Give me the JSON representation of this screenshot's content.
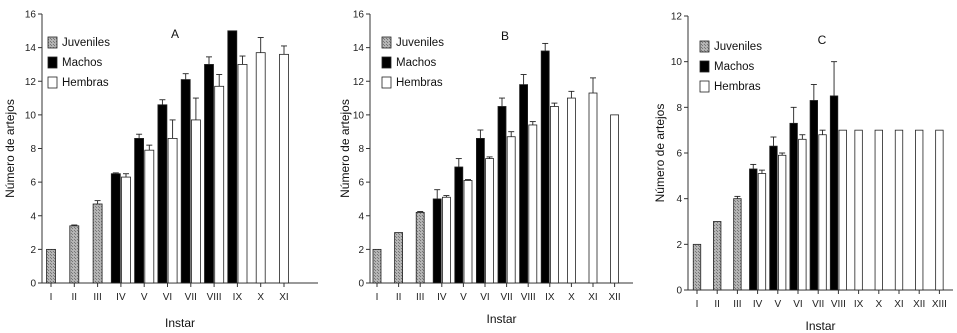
{
  "figure": {
    "legend_labels": [
      "Juveniles",
      "Machos",
      "Hembras"
    ],
    "colors": {
      "juveniles": "#a8a8a8",
      "machos": "#000000",
      "hembras": "#ffffff",
      "outline": "#222222"
    }
  },
  "chart_data": [
    {
      "type": "bar",
      "panel": "A",
      "xlabel": "Instar",
      "ylabel": "Número de artejos",
      "ylim": [
        0,
        16
      ],
      "yticks": [
        0,
        2,
        4,
        6,
        8,
        10,
        12,
        14,
        16
      ],
      "categories": [
        "I",
        "II",
        "III",
        "IV",
        "V",
        "VI",
        "VII",
        "VIII",
        "IX",
        "X",
        "XI"
      ],
      "legend_position": "top-left",
      "series": [
        {
          "name": "Juveniles",
          "values": [
            2.0,
            3.4,
            4.7,
            null,
            null,
            null,
            null,
            null,
            null,
            null,
            null
          ],
          "errors": [
            0,
            0.05,
            0.2,
            null,
            null,
            null,
            null,
            null,
            null,
            null,
            null
          ]
        },
        {
          "name": "Machos",
          "values": [
            null,
            null,
            null,
            6.5,
            8.6,
            10.6,
            12.1,
            13.0,
            15.0,
            null,
            null
          ],
          "errors": [
            null,
            null,
            null,
            0.05,
            0.25,
            0.3,
            0.35,
            0.45,
            0,
            null,
            null
          ]
        },
        {
          "name": "Hembras",
          "values": [
            null,
            null,
            null,
            6.3,
            7.9,
            8.6,
            9.7,
            11.7,
            13.0,
            13.7,
            13.6
          ],
          "errors": [
            null,
            null,
            null,
            0.2,
            0.3,
            1.1,
            1.3,
            0.7,
            0.5,
            0.9,
            0.5
          ]
        }
      ]
    },
    {
      "type": "bar",
      "panel": "B",
      "xlabel": "Instar",
      "ylabel": "Número de artejos",
      "ylim": [
        0,
        16
      ],
      "yticks": [
        0,
        2,
        4,
        6,
        8,
        10,
        12,
        14,
        16
      ],
      "categories": [
        "I",
        "II",
        "III",
        "IV",
        "V",
        "VI",
        "VII",
        "VIII",
        "IX",
        "X",
        "XI",
        "XII"
      ],
      "legend_position": "top-left",
      "series": [
        {
          "name": "Juveniles",
          "values": [
            2.0,
            3.0,
            4.2,
            null,
            null,
            null,
            null,
            null,
            null,
            null,
            null,
            null
          ],
          "errors": [
            0,
            0,
            0.05,
            null,
            null,
            null,
            null,
            null,
            null,
            null,
            null,
            null
          ]
        },
        {
          "name": "Machos",
          "values": [
            null,
            null,
            null,
            5.0,
            6.9,
            8.6,
            10.5,
            11.8,
            13.8,
            null,
            null,
            null
          ],
          "errors": [
            null,
            null,
            null,
            0.55,
            0.5,
            0.5,
            0.5,
            0.6,
            0.45,
            null,
            null,
            null
          ]
        },
        {
          "name": "Hembras",
          "values": [
            null,
            null,
            null,
            5.1,
            6.1,
            7.4,
            8.7,
            9.4,
            10.5,
            11.0,
            11.3,
            10.0
          ],
          "errors": [
            null,
            null,
            null,
            0.1,
            0.05,
            0.1,
            0.3,
            0.2,
            0.2,
            0.4,
            0.9,
            0
          ]
        }
      ]
    },
    {
      "type": "bar",
      "panel": "C",
      "xlabel": "Instar",
      "ylabel": "Número de artejos",
      "ylim": [
        0,
        12
      ],
      "yticks": [
        0,
        2,
        4,
        6,
        8,
        10,
        12
      ],
      "categories": [
        "I",
        "II",
        "III",
        "IV",
        "V",
        "VI",
        "VII",
        "VIII",
        "IX",
        "X",
        "XI",
        "XII",
        "XIII"
      ],
      "legend_position": "top-left",
      "series": [
        {
          "name": "Juveniles",
          "values": [
            2.0,
            3.0,
            4.0,
            null,
            null,
            null,
            null,
            null,
            null,
            null,
            null,
            null,
            null
          ],
          "errors": [
            0,
            0,
            0.1,
            null,
            null,
            null,
            null,
            null,
            null,
            null,
            null,
            null,
            null
          ]
        },
        {
          "name": "Machos",
          "values": [
            null,
            null,
            null,
            5.3,
            6.3,
            7.3,
            8.3,
            8.5,
            null,
            null,
            null,
            null,
            null
          ],
          "errors": [
            null,
            null,
            null,
            0.2,
            0.4,
            0.7,
            0.7,
            1.5,
            null,
            null,
            null,
            null,
            null
          ]
        },
        {
          "name": "Hembras",
          "values": [
            null,
            null,
            null,
            5.1,
            5.9,
            6.6,
            6.8,
            7.0,
            7.0,
            7.0,
            7.0,
            7.0,
            7.0
          ],
          "errors": [
            null,
            null,
            null,
            0.15,
            0.1,
            0.2,
            0.2,
            0,
            0,
            0,
            0,
            0,
            0
          ]
        }
      ]
    }
  ]
}
